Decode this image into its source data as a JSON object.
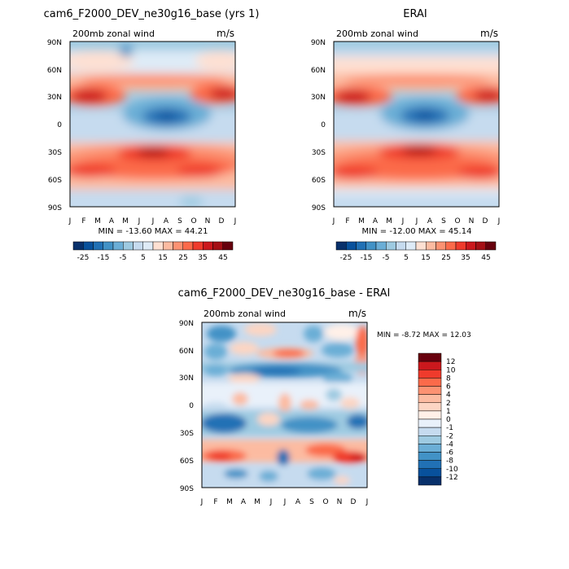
{
  "figure": {
    "months": [
      "J",
      "F",
      "M",
      "A",
      "M",
      "J",
      "J",
      "A",
      "S",
      "O",
      "N",
      "D",
      "J"
    ],
    "lat_labels": [
      "90N",
      "60N",
      "30N",
      "0",
      "30S",
      "60S",
      "90S"
    ]
  },
  "colors": {
    "abs_scale": [
      "#08306b",
      "#08519c",
      "#2171b5",
      "#4292c6",
      "#6baed6",
      "#9ecae1",
      "#c6dbef",
      "#deebf7",
      "#fee0d2",
      "#fcbba1",
      "#fc9272",
      "#fb6a4a",
      "#ef3b2c",
      "#cb181d",
      "#a50f15",
      "#67000d"
    ],
    "diff_scale": [
      "#08306b",
      "#08519c",
      "#2171b5",
      "#4292c6",
      "#6baed6",
      "#9ecae1",
      "#c6dbef",
      "#e9f1fa",
      "#fff0e8",
      "#fcd5c3",
      "#fcbba1",
      "#fc9272",
      "#fb6a4a",
      "#ef3b2c",
      "#cb181d",
      "#67000d"
    ]
  },
  "chart_data": [
    {
      "type": "heatmap",
      "title": "cam6_F2000_DEV_ne30g16_base (yrs 1)",
      "subtitle_left": "200mb zonal wind",
      "units": "m/s",
      "stats": "MIN = -13.60  MAX =  44.21",
      "min": -13.6,
      "max": 44.21,
      "x": [
        "Jan",
        "Feb",
        "Mar",
        "Apr",
        "May",
        "Jun",
        "Jul",
        "Aug",
        "Sep",
        "Oct",
        "Nov",
        "Dec",
        "Jan"
      ],
      "y": [
        90,
        60,
        30,
        0,
        -30,
        -60,
        -90
      ],
      "colorbar_ticks": [
        "-25",
        "-15",
        "-5",
        "5",
        "15",
        "25",
        "35",
        "45"
      ],
      "colorbar_levels": 16
    },
    {
      "type": "heatmap",
      "title": "ERAI",
      "subtitle_left": "200mb zonal wind",
      "units": "m/s",
      "stats": "MIN = -12.00  MAX =  45.14",
      "min": -12.0,
      "max": 45.14,
      "x": [
        "Jan",
        "Feb",
        "Mar",
        "Apr",
        "May",
        "Jun",
        "Jul",
        "Aug",
        "Sep",
        "Oct",
        "Nov",
        "Dec",
        "Jan"
      ],
      "y": [
        90,
        60,
        30,
        0,
        -30,
        -60,
        -90
      ],
      "colorbar_ticks": [
        "-25",
        "-15",
        "-5",
        "5",
        "15",
        "25",
        "35",
        "45"
      ],
      "colorbar_levels": 16
    },
    {
      "type": "heatmap",
      "title": "cam6_F2000_DEV_ne30g16_base - ERAI",
      "subtitle_left": "200mb zonal wind",
      "units": "m/s",
      "stats": "MIN =  -8.72  MAX =  12.03",
      "min": -8.72,
      "max": 12.03,
      "x": [
        "Jan",
        "Feb",
        "Mar",
        "Apr",
        "May",
        "Jun",
        "Jul",
        "Aug",
        "Sep",
        "Oct",
        "Nov",
        "Dec",
        "Jan"
      ],
      "y": [
        90,
        60,
        30,
        0,
        -30,
        -60,
        -90
      ],
      "colorbar_ticks": [
        "12",
        "10",
        "8",
        "6",
        "4",
        "2",
        "1",
        "0",
        "-1",
        "-2",
        "-4",
        "-6",
        "-8",
        "-10",
        "-12"
      ]
    }
  ]
}
